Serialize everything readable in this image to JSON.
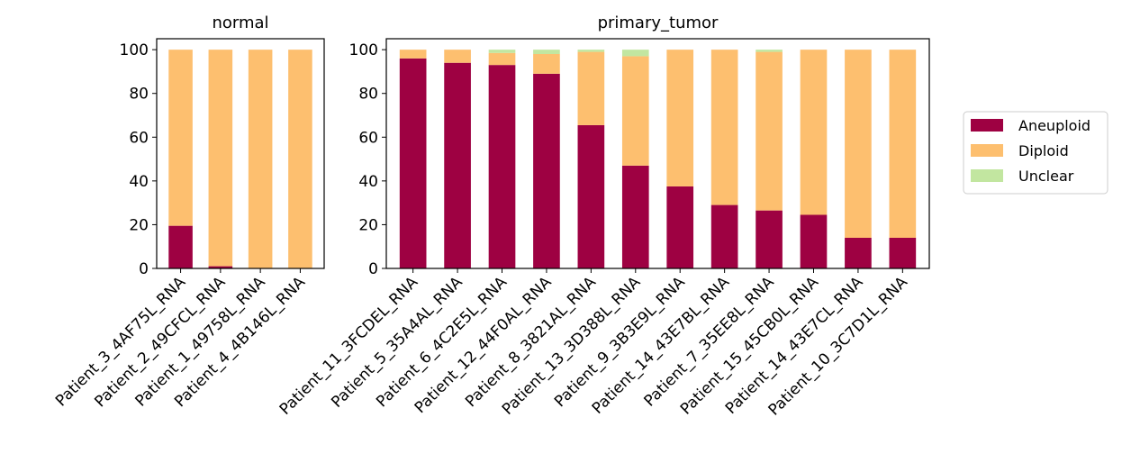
{
  "colors": {
    "Aneuploid": "#9e0142",
    "Diploid": "#fdbf6f",
    "Unclear": "#c2e6a0"
  },
  "legend": [
    "Aneuploid",
    "Diploid",
    "Unclear"
  ],
  "chart_data": [
    {
      "type": "bar",
      "stacked": true,
      "title": "normal",
      "ylim": [
        0,
        105
      ],
      "yticks": [
        0,
        20,
        40,
        60,
        80,
        100
      ],
      "grid": false,
      "categories": [
        "Patient_3_4AF75L_RNA",
        "Patient_2_49CFCL_RNA",
        "Patient_1_49758L_RNA",
        "Patient_4_4B146L_RNA"
      ],
      "series": [
        {
          "name": "Aneuploid",
          "values": [
            19.5,
            1,
            0,
            0
          ]
        },
        {
          "name": "Diploid",
          "values": [
            80.5,
            99,
            100,
            100
          ]
        },
        {
          "name": "Unclear",
          "values": [
            0,
            0,
            0,
            0
          ]
        }
      ]
    },
    {
      "type": "bar",
      "stacked": true,
      "title": "primary_tumor",
      "ylim": [
        0,
        105
      ],
      "yticks": [
        0,
        20,
        40,
        60,
        80,
        100
      ],
      "grid": false,
      "legend_position": "right",
      "categories": [
        "Patient_11_3FCDEL_RNA",
        "Patient_5_35A4AL_RNA",
        "Patient_6_4C2E5L_RNA",
        "Patient_12_44F0AL_RNA",
        "Patient_8_3821AL_RNA",
        "Patient_13_3D388L_RNA",
        "Patient_9_3B3E9L_RNA",
        "Patient_14_43E7BL_RNA",
        "Patient_7_35EE8L_RNA",
        "Patient_15_45CB0L_RNA",
        "Patient_14_43E7CL_RNA",
        "Patient_10_3C7D1L_RNA"
      ],
      "series": [
        {
          "name": "Aneuploid",
          "values": [
            96,
            94,
            93,
            89,
            65.5,
            47,
            37.5,
            29,
            26.5,
            24.5,
            14,
            14
          ]
        },
        {
          "name": "Diploid",
          "values": [
            4,
            6,
            5.5,
            9,
            33.5,
            50,
            62.5,
            71,
            72.5,
            75.5,
            86,
            86
          ]
        },
        {
          "name": "Unclear",
          "values": [
            0,
            0,
            1.5,
            2,
            1,
            3,
            0,
            0,
            1,
            0,
            0,
            0
          ]
        }
      ]
    }
  ]
}
